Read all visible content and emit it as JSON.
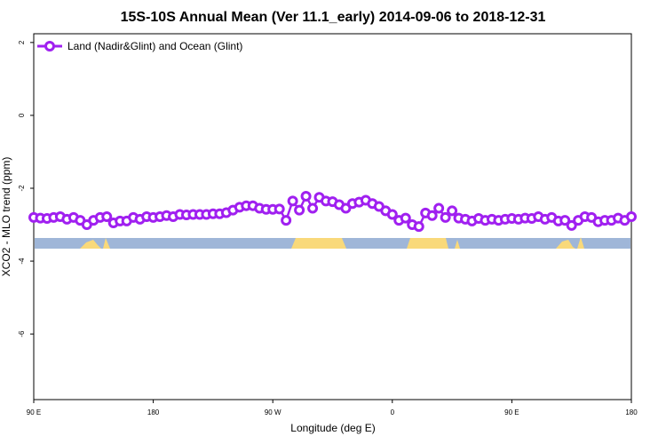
{
  "chart_data": {
    "type": "line",
    "title": "15S-10S Annual Mean (Ver 11.1_early)   2014-09-06 to 2018-12-31",
    "x_label": "Longitude (deg E)",
    "y_label": "XCO2 - MLO trend (ppm)",
    "xlim": [
      90,
      540
    ],
    "ylim": [
      -7.8,
      2.24
    ],
    "xticks": [
      {
        "value": 90,
        "label": "90 E"
      },
      {
        "value": 180,
        "label": "180"
      },
      {
        "value": 270,
        "label": "90 W"
      },
      {
        "value": 360,
        "label": "0"
      },
      {
        "value": 450,
        "label": "90 E"
      },
      {
        "value": 540,
        "label": "180"
      }
    ],
    "yticks": [
      2,
      0,
      -2,
      -4,
      -6
    ],
    "legend": "top-left",
    "x": [
      90,
      95,
      100,
      105,
      110,
      115,
      120,
      125,
      130,
      135,
      140,
      145,
      150,
      155,
      160,
      165,
      170,
      175,
      180,
      185,
      190,
      195,
      200,
      205,
      210,
      215,
      220,
      225,
      230,
      235,
      240,
      245,
      250,
      255,
      260,
      265,
      270,
      275,
      280,
      285,
      290,
      295,
      300,
      305,
      310,
      315,
      320,
      325,
      330,
      335,
      340,
      345,
      350,
      355,
      360,
      365,
      370,
      375,
      380,
      385,
      390,
      395,
      400,
      405,
      410,
      415,
      420,
      425,
      430,
      435,
      440,
      445,
      450,
      455,
      460,
      465,
      470,
      475,
      480,
      485,
      490,
      495,
      500,
      505,
      510,
      515,
      520,
      525,
      530,
      535,
      540
    ],
    "series": [
      {
        "name": "Land (Nadir&Glint) and Ocean (Glint)",
        "color": "#a020f0",
        "values": [
          -2.8,
          -2.82,
          -2.83,
          -2.8,
          -2.78,
          -2.85,
          -2.8,
          -2.88,
          -3.0,
          -2.88,
          -2.8,
          -2.78,
          -2.95,
          -2.9,
          -2.9,
          -2.8,
          -2.85,
          -2.78,
          -2.8,
          -2.78,
          -2.75,
          -2.78,
          -2.72,
          -2.73,
          -2.72,
          -2.72,
          -2.72,
          -2.7,
          -2.7,
          -2.67,
          -2.6,
          -2.52,
          -2.48,
          -2.48,
          -2.55,
          -2.58,
          -2.58,
          -2.57,
          -2.88,
          -2.35,
          -2.6,
          -2.22,
          -2.55,
          -2.25,
          -2.35,
          -2.37,
          -2.45,
          -2.55,
          -2.42,
          -2.38,
          -2.33,
          -2.42,
          -2.5,
          -2.62,
          -2.72,
          -2.88,
          -2.82,
          -3.0,
          -3.05,
          -2.68,
          -2.75,
          -2.55,
          -2.8,
          -2.62,
          -2.82,
          -2.85,
          -2.9,
          -2.83,
          -2.88,
          -2.85,
          -2.88,
          -2.85,
          -2.83,
          -2.85,
          -2.82,
          -2.83,
          -2.78,
          -2.85,
          -2.8,
          -2.9,
          -2.88,
          -3.02,
          -2.88,
          -2.78,
          -2.8,
          -2.92,
          -2.88,
          -2.88,
          -2.82,
          -2.88,
          -2.78
        ]
      }
    ]
  }
}
